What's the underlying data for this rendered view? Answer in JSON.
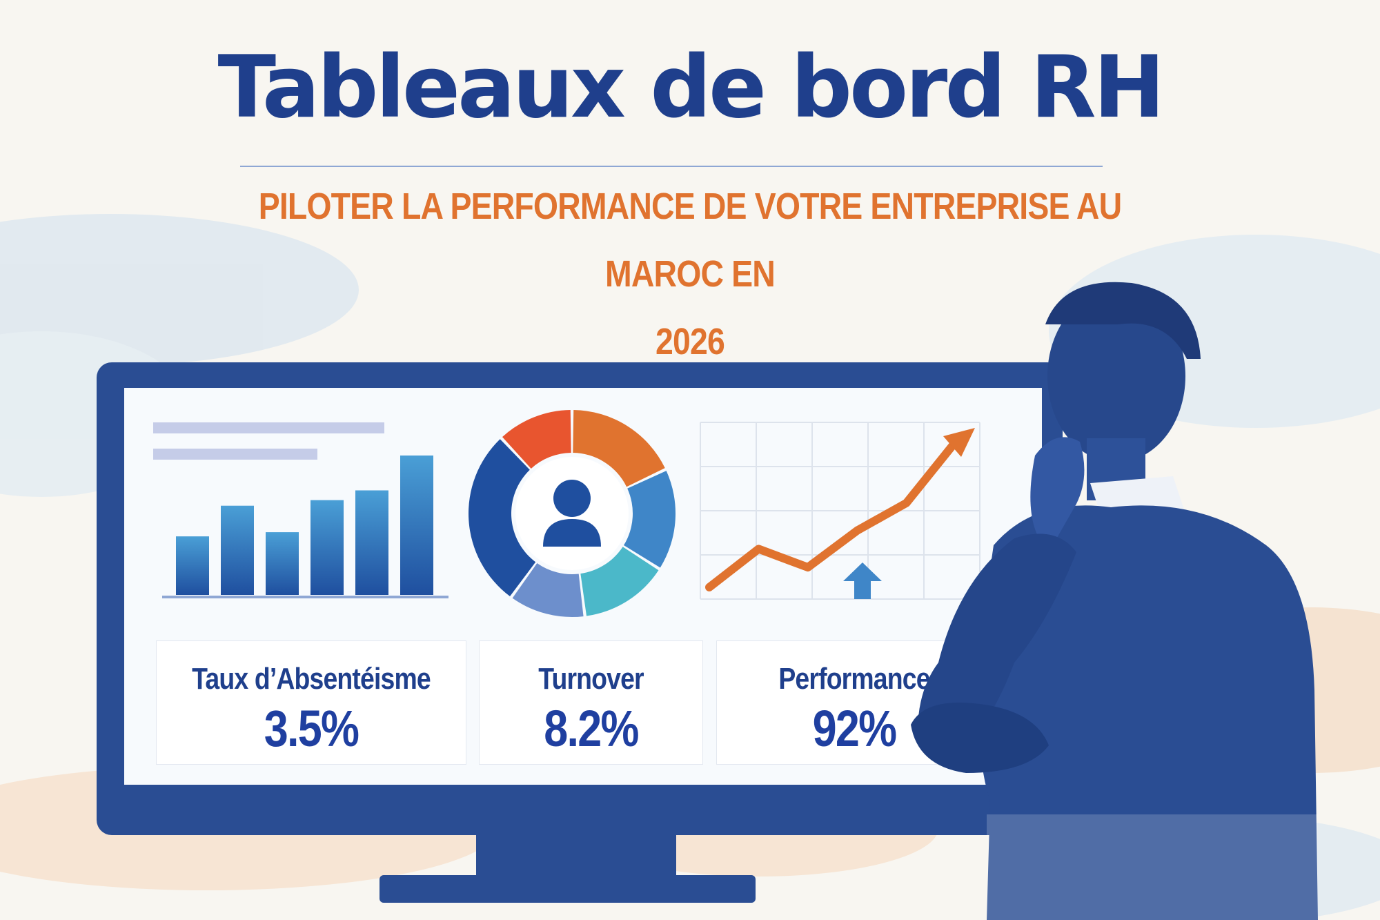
{
  "header": {
    "title": "Tableaux de bord RH",
    "subtitle_line1": "PILOTER LA PERFORMANCE DE VOTRE ENTREPRISE AU MAROC EN",
    "subtitle_line2": "2026"
  },
  "kpis": [
    {
      "label": "Taux d’Absentéisme",
      "value": "3.5%"
    },
    {
      "label": "Turnover",
      "value": "8.2%"
    },
    {
      "label": "Performance",
      "value": "92%"
    }
  ],
  "bar_chart": {
    "values": [
      0.42,
      0.64,
      0.45,
      0.68,
      0.75,
      1.0
    ]
  },
  "donut_chart": {
    "segments": [
      {
        "value": 0.18,
        "color": "#e0732f"
      },
      {
        "value": 0.16,
        "color": "#3f86c8"
      },
      {
        "value": 0.14,
        "color": "#4bb8c9"
      },
      {
        "value": 0.12,
        "color": "#6d8fcc"
      },
      {
        "value": 0.28,
        "color": "#1f4f9f"
      },
      {
        "value": 0.12,
        "color": "#e8552f"
      }
    ],
    "center_icon": "user-icon"
  },
  "line_chart": {
    "values": [
      0.05,
      0.3,
      0.18,
      0.42,
      0.6,
      1.0
    ],
    "trend_icon": "arrow-up-icon"
  },
  "colors": {
    "navy": "#1f3f8c",
    "orange": "#e0732f",
    "monitor": "#2a4d93"
  }
}
